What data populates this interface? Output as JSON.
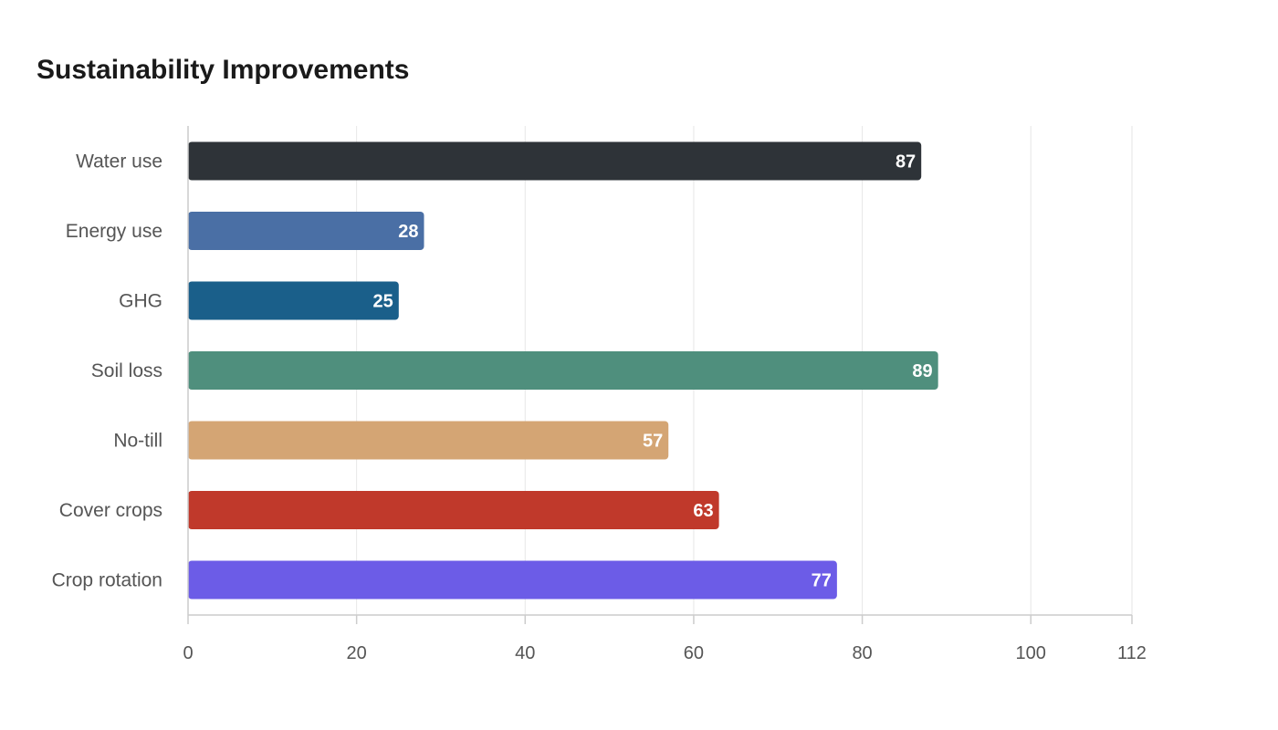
{
  "chart_data": {
    "type": "bar",
    "orientation": "horizontal",
    "title": "Sustainability Improvements",
    "xlabel": "",
    "ylabel": "",
    "categories": [
      "Water use",
      "Energy use",
      "GHG",
      "Soil loss",
      "No-till",
      "Cover crops",
      "Crop rotation"
    ],
    "values": [
      87,
      28,
      25,
      89,
      57,
      63,
      77
    ],
    "colors": [
      "#2e3338",
      "#4a6fa5",
      "#1a5f8a",
      "#4f8f7d",
      "#d4a574",
      "#c0392b",
      "#6c5ce7"
    ],
    "xlim": [
      0,
      112
    ],
    "xticks": [
      0,
      20,
      40,
      60,
      80,
      100,
      112
    ],
    "grid": true,
    "legend": "none"
  }
}
